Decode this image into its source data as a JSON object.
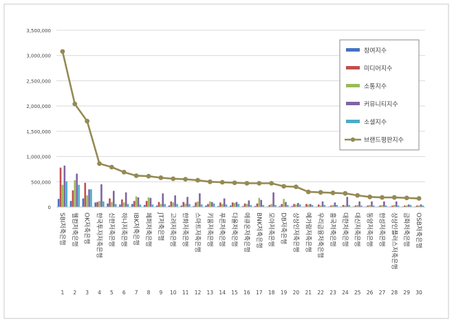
{
  "chart_data": {
    "type": "bar",
    "ylim": [
      0,
      3500000
    ],
    "yticks": [
      "0",
      "500,000",
      "1,000,000",
      "1,500,000",
      "2,000,000",
      "2,500,000",
      "3,000,000",
      "3,500,000"
    ],
    "rank_labels": [
      "1",
      "2",
      "3",
      "4",
      "5",
      "6",
      "7",
      "8",
      "9",
      "10",
      "11",
      "12",
      "13",
      "14",
      "15",
      "16",
      "17",
      "18",
      "19",
      "20",
      "21",
      "22",
      "23",
      "24",
      "25",
      "26",
      "27",
      "28",
      "29",
      "30"
    ],
    "categories": [
      "SBI저축은행",
      "웰컴저축은행",
      "OK저축은행",
      "한국투자저축은행",
      "신한저축은행",
      "하나저축은행",
      "IBK저축은행",
      "페퍼저축은행",
      "JT저축은행",
      "고려저축은행",
      "한화저축은행",
      "스마트저축은행",
      "키움저축은행",
      "푸른저축은행",
      "다올저축은행",
      "애큐온저축은행",
      "BNK저축은행",
      "모아저축은행",
      "DB저축은행",
      "상상인저축은행",
      "예가람저축은행",
      "우리금융저축은행",
      "흥국저축은행",
      "대한저축은행",
      "대신저축은행",
      "동양저축은행",
      "한성저축은행",
      "상상인플러스저축은행",
      "금화저축은행",
      "OSB저축은행"
    ],
    "series": [
      {
        "name": "참여지수",
        "type": "bar",
        "color": "#4472c4",
        "values": [
          160000,
          120000,
          170000,
          90000,
          70000,
          50000,
          60000,
          40000,
          30000,
          30000,
          30000,
          20000,
          30000,
          20000,
          30000,
          20000,
          20000,
          10000,
          20000,
          20000,
          10000,
          10000,
          10000,
          10000,
          10000,
          10000,
          10000,
          10000,
          10000,
          10000
        ]
      },
      {
        "name": "미디어지수",
        "type": "bar",
        "color": "#c0504d",
        "values": [
          780000,
          330000,
          480000,
          100000,
          170000,
          150000,
          120000,
          120000,
          100000,
          110000,
          100000,
          90000,
          60000,
          90000,
          90000,
          70000,
          70000,
          40000,
          60000,
          60000,
          60000,
          50000,
          30000,
          40000,
          30000,
          30000,
          30000,
          30000,
          30000,
          30000
        ]
      },
      {
        "name": "소통지수",
        "type": "bar",
        "color": "#9bbb59",
        "values": [
          440000,
          530000,
          230000,
          120000,
          100000,
          90000,
          210000,
          190000,
          60000,
          90000,
          70000,
          110000,
          110000,
          60000,
          80000,
          60000,
          180000,
          60000,
          160000,
          50000,
          50000,
          30000,
          40000,
          30000,
          40000,
          40000,
          40000,
          40000,
          30000,
          30000
        ]
      },
      {
        "name": "커뮤니티지수",
        "type": "bar",
        "color": "#8064a2",
        "values": [
          820000,
          660000,
          350000,
          450000,
          320000,
          290000,
          190000,
          180000,
          270000,
          230000,
          200000,
          270000,
          100000,
          170000,
          100000,
          130000,
          140000,
          290000,
          100000,
          80000,
          60000,
          110000,
          90000,
          200000,
          110000,
          110000,
          110000,
          110000,
          50000,
          50000
        ]
      },
      {
        "name": "소셜지수",
        "type": "bar",
        "color": "#4bacc6",
        "values": [
          510000,
          440000,
          350000,
          110000,
          60000,
          60000,
          50000,
          50000,
          60000,
          60000,
          60000,
          50000,
          70000,
          50000,
          60000,
          40000,
          40000,
          40000,
          40000,
          50000,
          40000,
          40000,
          40000,
          40000,
          30000,
          30000,
          30000,
          30000,
          40000,
          30000
        ]
      },
      {
        "name": "브랜드평판지수",
        "type": "line",
        "color": "#948a54",
        "values": [
          3080000,
          2040000,
          1700000,
          860000,
          790000,
          690000,
          620000,
          610000,
          580000,
          560000,
          550000,
          530000,
          500000,
          490000,
          480000,
          470000,
          470000,
          470000,
          410000,
          400000,
          300000,
          290000,
          280000,
          270000,
          230000,
          200000,
          190000,
          190000,
          180000,
          170000
        ]
      }
    ],
    "legend": {
      "placement": "top-right"
    },
    "grid": true
  }
}
